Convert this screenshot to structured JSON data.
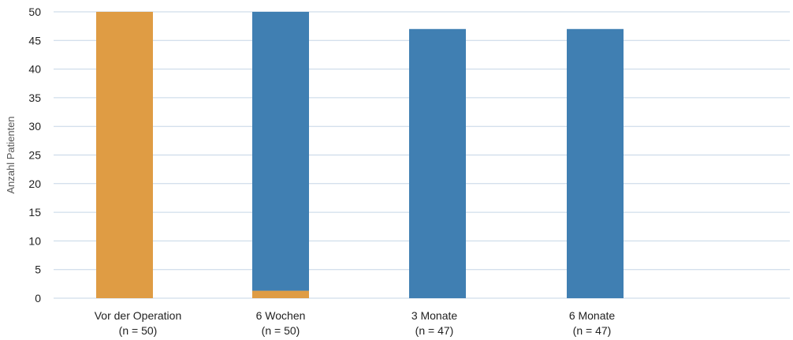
{
  "chart_data": {
    "type": "bar",
    "stacked": true,
    "categories": [
      [
        "Vor der Operation",
        "(n = 50)"
      ],
      [
        "6 Wochen",
        "(n = 50)"
      ],
      [
        "3 Monate",
        "(n = 47)"
      ],
      [
        "6 Monate",
        "(n = 47)"
      ]
    ],
    "series": [
      {
        "color": "#df9c44",
        "values": [
          50,
          1.3,
          0,
          0
        ]
      },
      {
        "color": "#407fb2",
        "values": [
          0,
          48.7,
          47,
          47
        ]
      }
    ],
    "ylabel": "Anzahl Patienten",
    "ylim": [
      0,
      50
    ],
    "yticks": [
      0,
      5,
      10,
      15,
      20,
      25,
      30,
      35,
      40,
      45,
      50
    ],
    "grid": true,
    "legend": "none"
  }
}
